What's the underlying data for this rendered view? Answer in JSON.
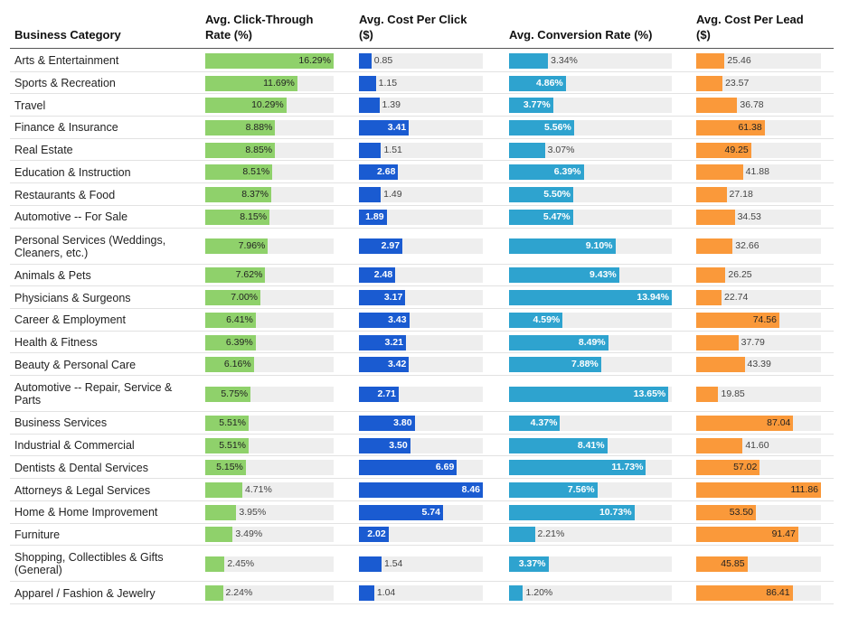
{
  "chart_data": {
    "type": "table",
    "headers": {
      "category": "Business Category",
      "ctr": [
        "Avg. Click-Through",
        "Rate (%)"
      ],
      "cpc": [
        "Avg. Cost Per Click",
        "($)"
      ],
      "conv": [
        "Avg. Conversion Rate (%)"
      ],
      "cpl": [
        "Avg. Cost Per Lead",
        "($)"
      ]
    },
    "colors": {
      "ctr": "#8fd16b",
      "cpc": "#1a5bd1",
      "conv": "#2ea3cf",
      "cpl": "#fa993a",
      "track": "#eeeeee"
    },
    "max": {
      "ctr": 16.29,
      "cpc": 8.46,
      "conv": 13.94,
      "cpl": 111.86
    },
    "rows": [
      {
        "category": [
          "Arts & Entertainment"
        ],
        "ctr": "16.29%",
        "cpc": "0.85",
        "conv": "3.34%",
        "cpl": "25.46"
      },
      {
        "category": [
          "Sports & Recreation"
        ],
        "ctr": "11.69%",
        "cpc": "1.15",
        "conv": "4.86%",
        "cpl": "23.57"
      },
      {
        "category": [
          "Travel"
        ],
        "ctr": "10.29%",
        "cpc": "1.39",
        "conv": "3.77%",
        "cpl": "36.78"
      },
      {
        "category": [
          "Finance & Insurance"
        ],
        "ctr": "8.88%",
        "cpc": "3.41",
        "conv": "5.56%",
        "cpl": "61.38"
      },
      {
        "category": [
          "Real Estate"
        ],
        "ctr": "8.85%",
        "cpc": "1.51",
        "conv": "3.07%",
        "cpl": "49.25"
      },
      {
        "category": [
          "Education & Instruction"
        ],
        "ctr": "8.51%",
        "cpc": "2.68",
        "conv": "6.39%",
        "cpl": "41.88"
      },
      {
        "category": [
          "Restaurants & Food"
        ],
        "ctr": "8.37%",
        "cpc": "1.49",
        "conv": "5.50%",
        "cpl": "27.18"
      },
      {
        "category": [
          "Automotive -- For Sale"
        ],
        "ctr": "8.15%",
        "cpc": "1.89",
        "conv": "5.47%",
        "cpl": "34.53"
      },
      {
        "category": [
          "Personal Services (Weddings,",
          "Cleaners, etc.)"
        ],
        "ctr": "7.96%",
        "cpc": "2.97",
        "conv": "9.10%",
        "cpl": "32.66"
      },
      {
        "category": [
          "Animals & Pets"
        ],
        "ctr": "7.62%",
        "cpc": "2.48",
        "conv": "9.43%",
        "cpl": "26.25"
      },
      {
        "category": [
          "Physicians & Surgeons"
        ],
        "ctr": "7.00%",
        "cpc": "3.17",
        "conv": "13.94%",
        "cpl": "22.74"
      },
      {
        "category": [
          "Career & Employment"
        ],
        "ctr": "6.41%",
        "cpc": "3.43",
        "conv": "4.59%",
        "cpl": "74.56"
      },
      {
        "category": [
          "Health & Fitness"
        ],
        "ctr": "6.39%",
        "cpc": "3.21",
        "conv": "8.49%",
        "cpl": "37.79"
      },
      {
        "category": [
          "Beauty & Personal Care"
        ],
        "ctr": "6.16%",
        "cpc": "3.42",
        "conv": "7.88%",
        "cpl": "43.39"
      },
      {
        "category": [
          "Automotive -- Repair, Service &",
          "Parts"
        ],
        "ctr": "5.75%",
        "cpc": "2.71",
        "conv": "13.65%",
        "cpl": "19.85"
      },
      {
        "category": [
          "Business Services"
        ],
        "ctr": "5.51%",
        "cpc": "3.80",
        "conv": "4.37%",
        "cpl": "87.04"
      },
      {
        "category": [
          "Industrial & Commercial"
        ],
        "ctr": "5.51%",
        "cpc": "3.50",
        "conv": "8.41%",
        "cpl": "41.60"
      },
      {
        "category": [
          "Dentists & Dental Services"
        ],
        "ctr": "5.15%",
        "cpc": "6.69",
        "conv": "11.73%",
        "cpl": "57.02"
      },
      {
        "category": [
          "Attorneys & Legal Services"
        ],
        "ctr": "4.71%",
        "cpc": "8.46",
        "conv": "7.56%",
        "cpl": "111.86"
      },
      {
        "category": [
          "Home & Home Improvement"
        ],
        "ctr": "3.95%",
        "cpc": "5.74",
        "conv": "10.73%",
        "cpl": "53.50"
      },
      {
        "category": [
          "Furniture"
        ],
        "ctr": "3.49%",
        "cpc": "2.02",
        "conv": "2.21%",
        "cpl": "91.47"
      },
      {
        "category": [
          "Shopping, Collectibles & Gifts",
          "(General)"
        ],
        "ctr": "2.45%",
        "cpc": "1.54",
        "conv": "3.37%",
        "cpl": "45.85"
      },
      {
        "category": [
          "Apparel / Fashion & Jewelry"
        ],
        "ctr": "2.24%",
        "cpc": "1.04",
        "conv": "1.20%",
        "cpl": "86.41"
      }
    ]
  }
}
